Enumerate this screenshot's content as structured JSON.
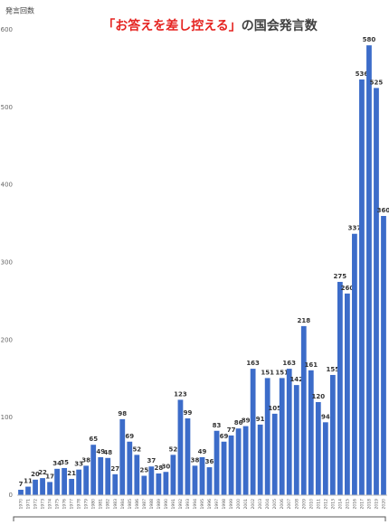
{
  "chart_data": {
    "type": "bar",
    "title_parts": [
      "「お答えを差し控える」",
      "の国会発言数"
    ],
    "title_colors": [
      "#e52421",
      "#404040"
    ],
    "y_label": "発言回数",
    "categories": [
      "1970",
      "1971",
      "1972",
      "1973",
      "1974",
      "1975",
      "1976",
      "1977",
      "1978",
      "1979",
      "1980",
      "1981",
      "1982",
      "1983",
      "1984",
      "1985",
      "1986",
      "1987",
      "1988",
      "1989",
      "1990",
      "1991",
      "1992",
      "1993",
      "1994",
      "1995",
      "1996",
      "1997",
      "1998",
      "1999",
      "2000",
      "2001",
      "2002",
      "2003",
      "2004",
      "2005",
      "2006",
      "2007",
      "2008",
      "2009",
      "2010",
      "2011",
      "2012",
      "2013",
      "2014",
      "2015",
      "2016",
      "2017",
      "2018",
      "2019",
      "2020"
    ],
    "values": [
      7,
      11,
      20,
      22,
      17,
      34,
      35,
      21,
      33,
      38,
      65,
      49,
      48,
      27,
      98,
      69,
      52,
      25,
      37,
      28,
      30,
      52,
      123,
      99,
      38,
      49,
      36,
      83,
      69,
      77,
      86,
      89,
      163,
      91,
      151,
      105,
      151,
      163,
      142,
      218,
      161,
      120,
      94,
      155,
      275,
      260,
      337,
      536,
      580,
      525,
      360
    ],
    "color": "#3c6cc9",
    "ylim": [
      0,
      600
    ],
    "yticks": [
      0,
      100,
      200,
      300,
      400,
      500,
      600
    ],
    "grid": false
  }
}
